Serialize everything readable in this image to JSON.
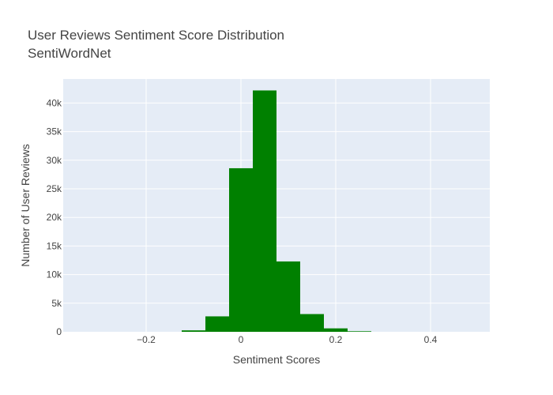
{
  "chart_data": {
    "type": "bar",
    "title": "User Reviews Sentiment Score Distribution",
    "subtitle": "SentiWordNet",
    "xlabel": "Sentiment Scores",
    "ylabel": "Number of User Reviews",
    "xlim": [
      -0.375,
      0.525
    ],
    "ylim": [
      0,
      44200
    ],
    "x_ticks": [
      -0.2,
      0,
      0.2,
      0.4
    ],
    "x_tick_labels": [
      "−0.2",
      "0",
      "0.2",
      "0.4"
    ],
    "y_ticks": [
      0,
      5000,
      10000,
      15000,
      20000,
      25000,
      30000,
      35000,
      40000
    ],
    "y_tick_labels": [
      "0",
      "5k",
      "10k",
      "15k",
      "20k",
      "25k",
      "30k",
      "35k",
      "40k"
    ],
    "grid": true,
    "bar_color": "#008000",
    "plot_bg": "#e5ecf6",
    "bins": [
      {
        "x0": -0.125,
        "x1": -0.075,
        "count": 250
      },
      {
        "x0": -0.075,
        "x1": -0.025,
        "count": 2700
      },
      {
        "x0": -0.025,
        "x1": 0.025,
        "count": 28600
      },
      {
        "x0": 0.025,
        "x1": 0.075,
        "count": 42200
      },
      {
        "x0": 0.075,
        "x1": 0.125,
        "count": 12300
      },
      {
        "x0": 0.125,
        "x1": 0.175,
        "count": 3100
      },
      {
        "x0": 0.175,
        "x1": 0.225,
        "count": 600
      },
      {
        "x0": 0.225,
        "x1": 0.275,
        "count": 100
      }
    ]
  }
}
